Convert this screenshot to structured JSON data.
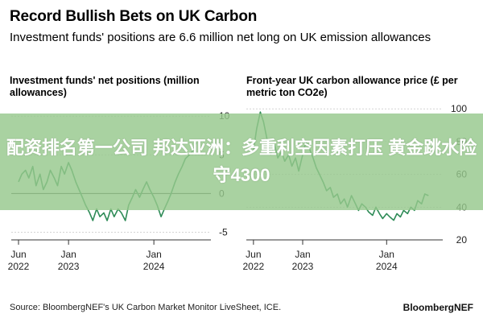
{
  "title": "Record Bullish Bets on UK Carbon",
  "subtitle": "Investment funds' positions are 6.6 million net long on UK emission allowances",
  "source": "Source: BloombergNEF's UK Carbon Market Monitor LiveSheet, ICE.",
  "brand": "BloombergNEF",
  "overlay_text": "配资排名第一公司 邦达亚洲：多重利空因素打压 黄金跳水险守4300",
  "colors": {
    "line": "#2e8b57",
    "axis": "#333333",
    "grid": "#bbbbbb",
    "overlay": "#96c88c"
  },
  "chart_data": [
    {
      "type": "line",
      "title": "Investment funds' net positions (million allowances)",
      "y_ticks": [
        10,
        5,
        0,
        -5
      ],
      "ylim": [
        -6,
        12
      ],
      "x_ticks": [
        {
          "top": "Jun",
          "bottom": "2022",
          "x": "2022-06"
        },
        {
          "top": "Jan",
          "bottom": "2023",
          "x": "2023-01"
        },
        {
          "top": "Jan",
          "bottom": "2024",
          "x": "2024-01"
        }
      ],
      "x_range": [
        "2022-05",
        "2024-09"
      ],
      "series": [
        {
          "x": [
            "2022-06-01",
            "2022-06-15",
            "2022-07-01",
            "2022-07-15",
            "2022-08-01",
            "2022-08-15",
            "2022-09-01",
            "2022-09-15",
            "2022-10-01",
            "2022-10-15",
            "2022-11-01",
            "2022-11-15",
            "2022-12-01",
            "2022-12-15",
            "2023-01-01",
            "2023-01-15",
            "2023-02-01",
            "2023-02-15",
            "2023-03-01",
            "2023-03-15",
            "2023-04-01",
            "2023-04-15",
            "2023-05-01",
            "2023-05-15",
            "2023-06-01",
            "2023-06-15",
            "2023-07-01",
            "2023-07-15",
            "2023-08-01",
            "2023-08-15",
            "2023-09-01",
            "2023-09-15",
            "2023-10-01",
            "2023-10-15",
            "2023-11-01",
            "2023-11-15",
            "2023-12-01",
            "2023-12-15",
            "2024-01-01",
            "2024-01-15",
            "2024-02-01",
            "2024-02-15",
            "2024-03-01",
            "2024-03-15",
            "2024-04-01",
            "2024-04-15",
            "2024-05-01",
            "2024-05-15",
            "2024-06-01",
            "2024-06-15",
            "2024-07-01"
          ],
          "values": [
            1.5,
            2.5,
            3.0,
            2.0,
            3.5,
            1.0,
            2.5,
            0.5,
            1.5,
            3.0,
            2.0,
            1.0,
            3.5,
            2.5,
            4.0,
            3.0,
            1.5,
            0.5,
            -0.5,
            -1.5,
            -2.5,
            -3.5,
            -2.0,
            -3.0,
            -2.5,
            -3.5,
            -2.0,
            -3.0,
            -2.0,
            -2.5,
            -3.5,
            -1.5,
            -0.5,
            0.5,
            -0.5,
            0.5,
            1.5,
            0.5,
            -0.5,
            -1.5,
            -3.0,
            -2.0,
            -1.0,
            0.0,
            1.5,
            2.5,
            3.5,
            4.5,
            5.0,
            5.5,
            6.6
          ]
        }
      ]
    },
    {
      "type": "line",
      "title": "Front-year UK carbon allowance price (£ per metric ton CO2e)",
      "y_ticks": [
        100,
        80,
        60,
        40,
        20
      ],
      "ylim": [
        20,
        105
      ],
      "x_ticks": [
        {
          "top": "Jun",
          "bottom": "2022",
          "x": "2022-06"
        },
        {
          "top": "Jan",
          "bottom": "2023",
          "x": "2023-01"
        },
        {
          "top": "Jan",
          "bottom": "2024",
          "x": "2024-01"
        }
      ],
      "x_range": [
        "2022-05",
        "2024-09"
      ],
      "series": [
        {
          "x": [
            "2022-06-01",
            "2022-06-15",
            "2022-07-01",
            "2022-07-15",
            "2022-08-01",
            "2022-08-15",
            "2022-09-01",
            "2022-09-15",
            "2022-10-01",
            "2022-10-15",
            "2022-11-01",
            "2022-11-15",
            "2022-12-01",
            "2022-12-15",
            "2023-01-01",
            "2023-01-15",
            "2023-02-01",
            "2023-02-15",
            "2023-03-01",
            "2023-03-15",
            "2023-04-01",
            "2023-04-15",
            "2023-05-01",
            "2023-05-15",
            "2023-06-01",
            "2023-06-15",
            "2023-07-01",
            "2023-07-15",
            "2023-08-01",
            "2023-08-15",
            "2023-09-01",
            "2023-09-15",
            "2023-10-01",
            "2023-10-15",
            "2023-11-01",
            "2023-11-15",
            "2023-12-01",
            "2023-12-15",
            "2024-01-01",
            "2024-01-15",
            "2024-02-01",
            "2024-02-15",
            "2024-03-01",
            "2024-03-15",
            "2024-04-01",
            "2024-04-15",
            "2024-05-01",
            "2024-05-15",
            "2024-06-01",
            "2024-06-15",
            "2024-07-01"
          ],
          "values": [
            75,
            88,
            98,
            92,
            80,
            72,
            78,
            70,
            74,
            68,
            72,
            65,
            70,
            62,
            72,
            80,
            75,
            70,
            64,
            60,
            55,
            50,
            52,
            46,
            48,
            42,
            45,
            40,
            47,
            43,
            38,
            42,
            40,
            37,
            35,
            40,
            36,
            33,
            36,
            34,
            32,
            36,
            34,
            38,
            36,
            40,
            38,
            44,
            42,
            48,
            47
          ]
        }
      ]
    }
  ]
}
